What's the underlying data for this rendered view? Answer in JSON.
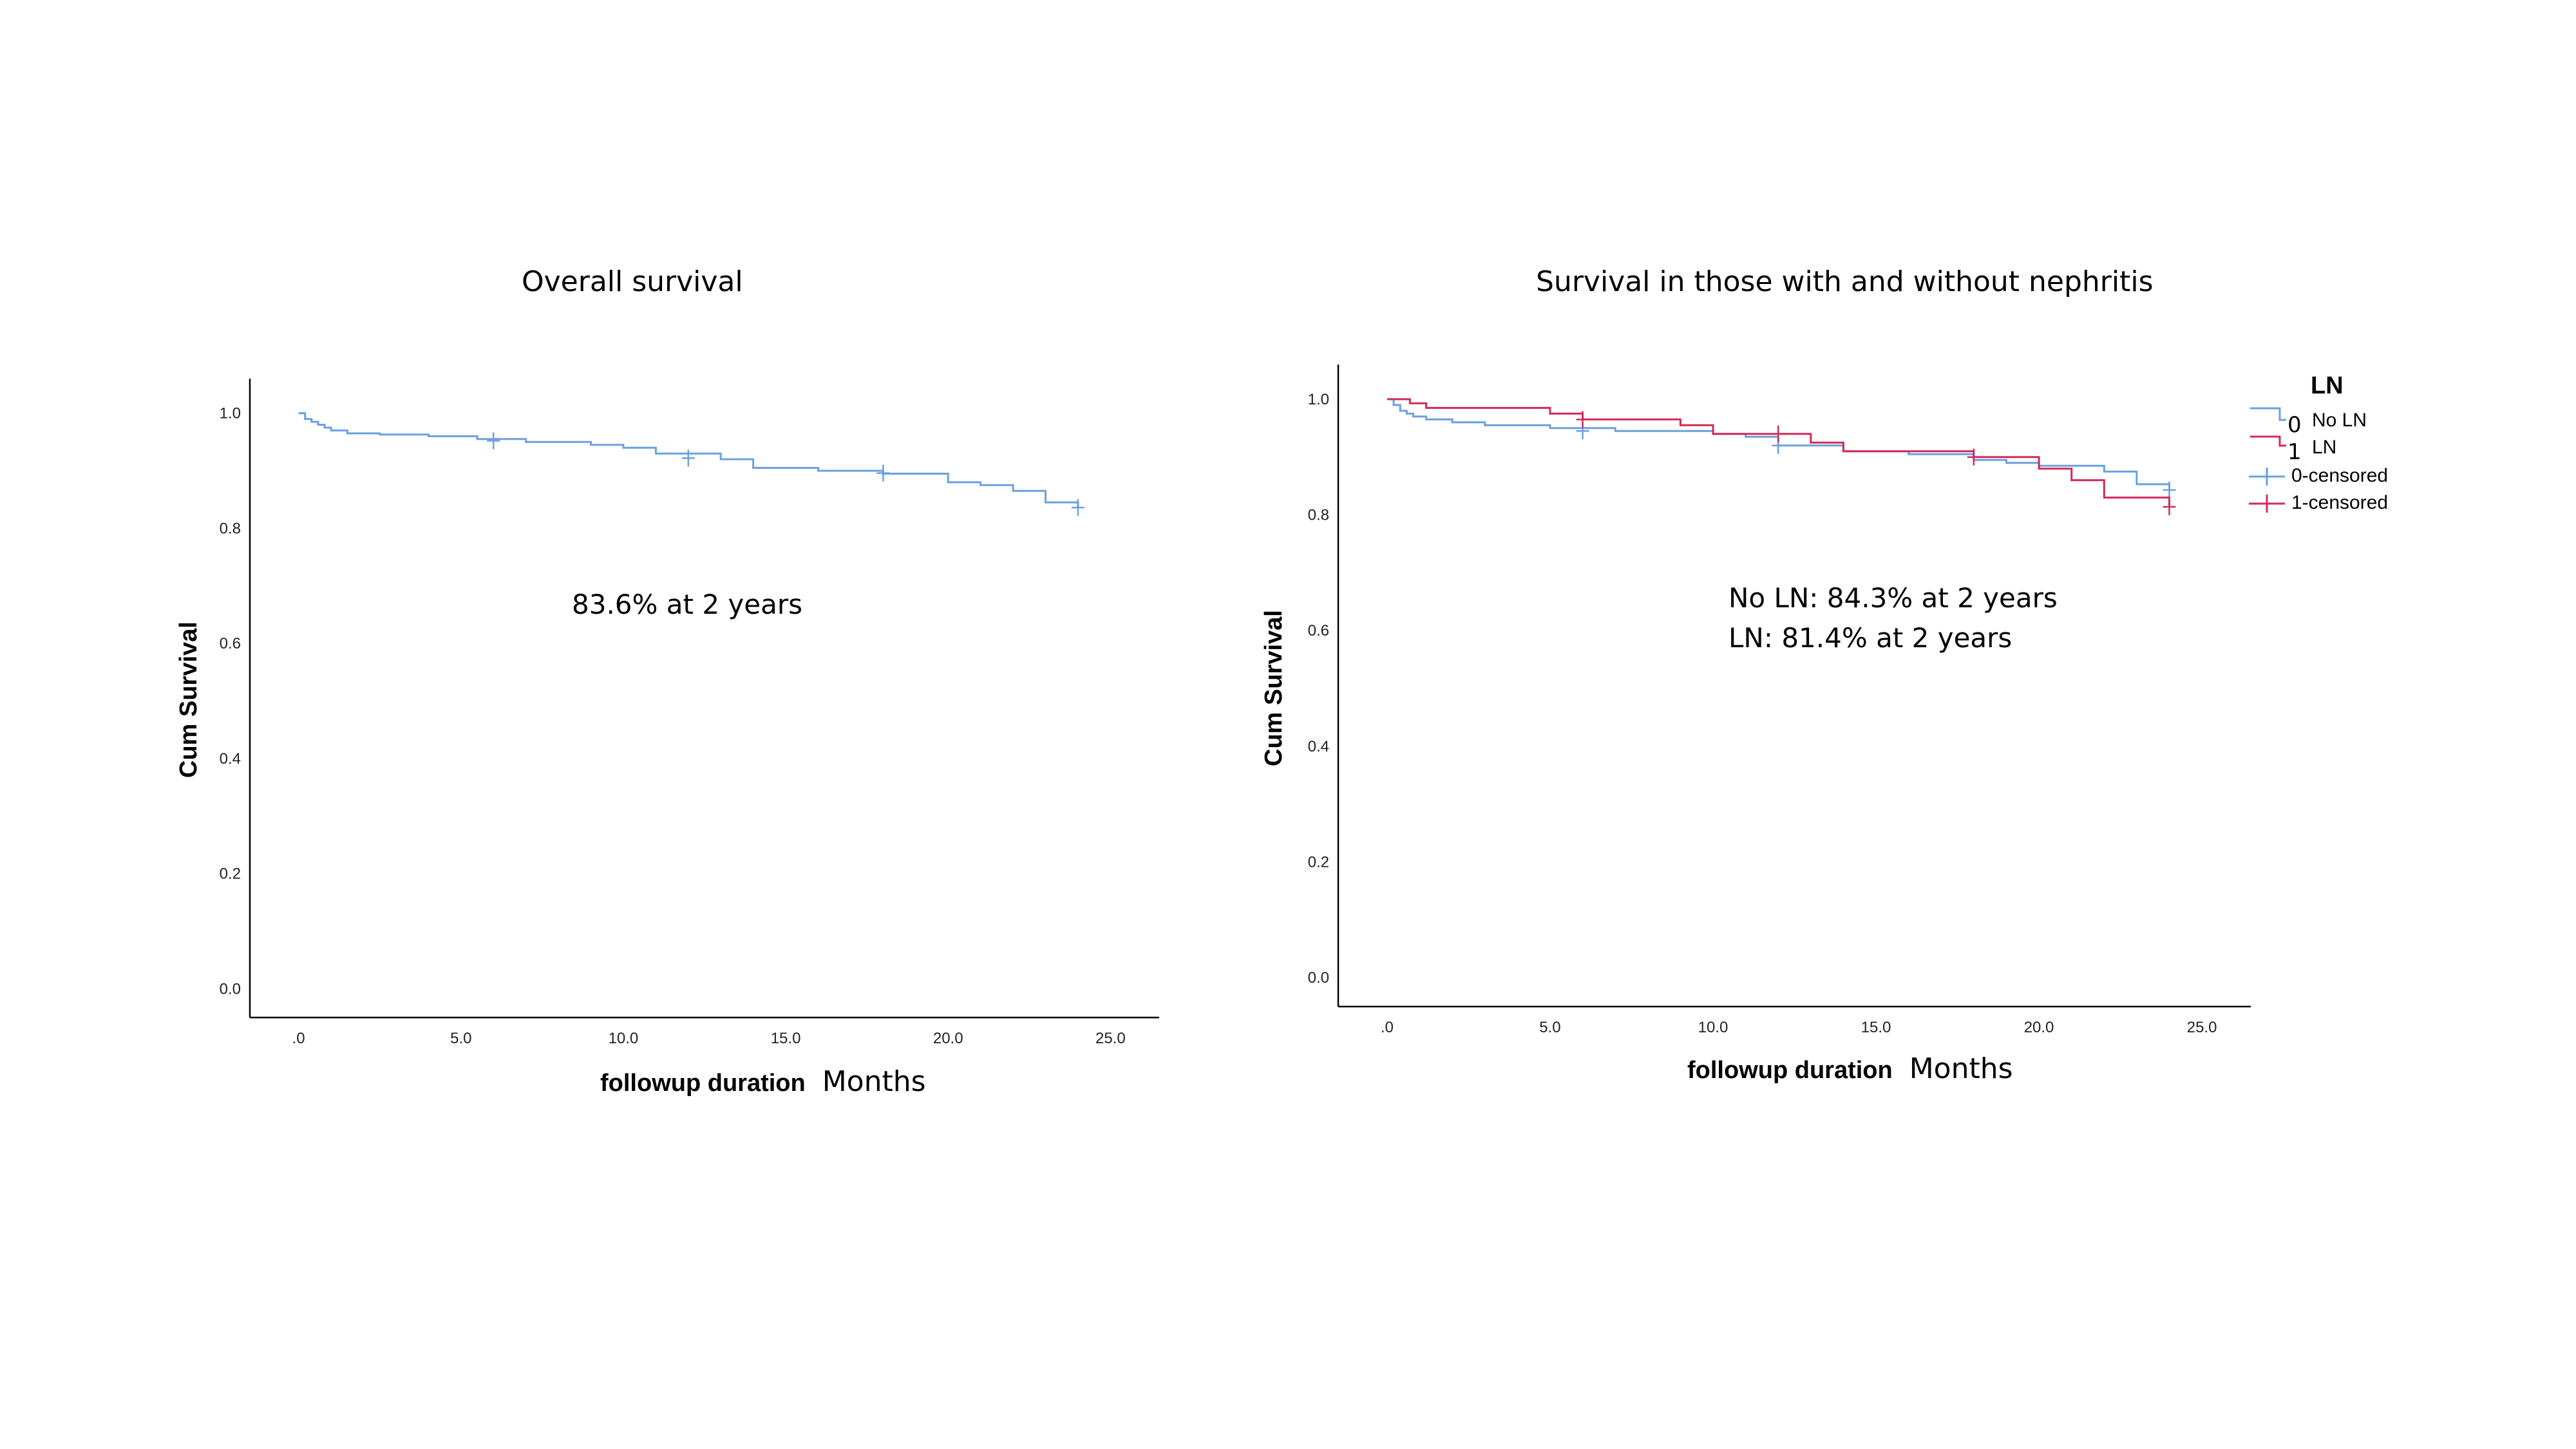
{
  "colors": {
    "blue": "#6aa0e0",
    "red": "#d22a58",
    "axis": "#000000"
  },
  "chart_data": [
    {
      "type": "line",
      "title": "Overall survival",
      "xlabel": "followup duration",
      "xlabel_unit": "Months",
      "ylabel": "Cum Survival",
      "xlim": [
        -1.5,
        26.5
      ],
      "ylim": [
        -0.05,
        1.06
      ],
      "x_ticks": [
        0,
        5,
        10,
        15,
        20,
        25
      ],
      "x_tick_labels": [
        ".0",
        "5.0",
        "10.0",
        "15.0",
        "20.0",
        "25.0"
      ],
      "y_ticks": [
        0,
        0.2,
        0.4,
        0.6,
        0.8,
        1.0
      ],
      "y_tick_labels": [
        "0.0",
        "0.2",
        "0.4",
        "0.6",
        "0.8",
        "1.0"
      ],
      "annotation": [
        "83.6% at 2 years"
      ],
      "series": [
        {
          "color": "#6aa0e0",
          "x": [
            0,
            0.2,
            0.4,
            0.6,
            0.8,
            1.0,
            1.5,
            2.5,
            4,
            5.5,
            7,
            9,
            10,
            11,
            13,
            14,
            16,
            18,
            20,
            21,
            22,
            23,
            24
          ],
          "y": [
            1.0,
            0.99,
            0.985,
            0.98,
            0.975,
            0.97,
            0.965,
            0.963,
            0.96,
            0.955,
            0.95,
            0.945,
            0.94,
            0.93,
            0.92,
            0.905,
            0.9,
            0.895,
            0.88,
            0.875,
            0.865,
            0.845,
            0.836
          ],
          "censored": [
            {
              "x": 6.0,
              "y": 0.952
            },
            {
              "x": 12.0,
              "y": 0.922
            },
            {
              "x": 18.0,
              "y": 0.896
            },
            {
              "x": 24.0,
              "y": 0.836
            }
          ]
        }
      ]
    },
    {
      "type": "line",
      "title": "Survival in those with and without nephritis",
      "xlabel": "followup duration",
      "xlabel_unit": "Months",
      "ylabel": "Cum Survival",
      "xlim": [
        -1.5,
        26.5
      ],
      "ylim": [
        -0.05,
        1.06
      ],
      "x_ticks": [
        0,
        5,
        10,
        15,
        20,
        25
      ],
      "x_tick_labels": [
        ".0",
        "5.0",
        "10.0",
        "15.0",
        "20.0",
        "25.0"
      ],
      "y_ticks": [
        0,
        0.2,
        0.4,
        0.6,
        0.8,
        1.0
      ],
      "y_tick_labels": [
        "0.0",
        "0.2",
        "0.4",
        "0.6",
        "0.8",
        "1.0"
      ],
      "annotation": [
        "No LN: 84.3% at 2 years",
        "LN: 81.4% at 2 years"
      ],
      "legend": {
        "title": "LN",
        "position": "right",
        "entries": [
          {
            "code": "0",
            "label": "No LN",
            "color": "#6aa0e0"
          },
          {
            "code": "1",
            "label": "LN",
            "color": "#d22a58"
          },
          {
            "label": "0-censored",
            "color": "#6aa0e0"
          },
          {
            "label": "1-censored",
            "color": "#d22a58"
          }
        ]
      },
      "series": [
        {
          "name": "0",
          "color": "#6aa0e0",
          "x": [
            0,
            0.2,
            0.4,
            0.6,
            0.8,
            1.2,
            2,
            3,
            5,
            7,
            9,
            10,
            11,
            12,
            14,
            16,
            18,
            19,
            20,
            22,
            23,
            24
          ],
          "y": [
            1.0,
            0.99,
            0.98,
            0.975,
            0.97,
            0.965,
            0.96,
            0.955,
            0.95,
            0.945,
            0.945,
            0.94,
            0.935,
            0.92,
            0.91,
            0.905,
            0.895,
            0.89,
            0.885,
            0.875,
            0.853,
            0.843
          ],
          "censored": [
            {
              "x": 6.0,
              "y": 0.945
            },
            {
              "x": 12.0,
              "y": 0.92
            },
            {
              "x": 24.0,
              "y": 0.843
            }
          ]
        },
        {
          "name": "1",
          "color": "#d22a58",
          "x": [
            0,
            0.7,
            1.2,
            5,
            6,
            9,
            10,
            13,
            14,
            18,
            20,
            21,
            22,
            24
          ],
          "y": [
            1.0,
            0.993,
            0.985,
            0.975,
            0.965,
            0.955,
            0.94,
            0.925,
            0.91,
            0.9,
            0.88,
            0.86,
            0.83,
            0.814
          ],
          "censored": [
            {
              "x": 6.0,
              "y": 0.965
            },
            {
              "x": 12.0,
              "y": 0.94
            },
            {
              "x": 18.0,
              "y": 0.9
            },
            {
              "x": 24.0,
              "y": 0.814
            }
          ]
        }
      ]
    }
  ]
}
